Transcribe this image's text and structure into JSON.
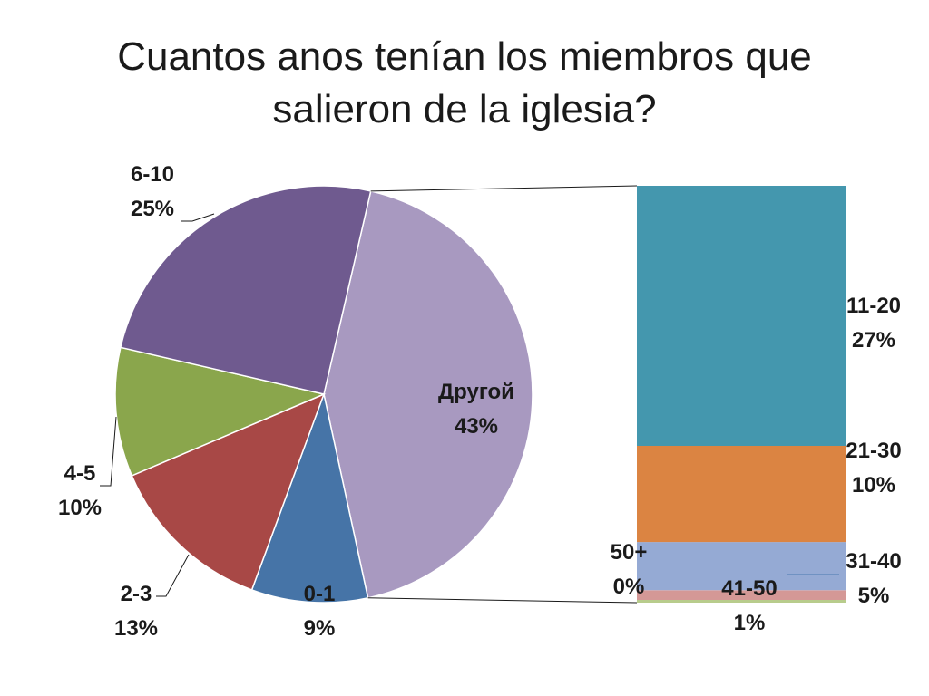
{
  "slide": {
    "title_line1": "Cuantos anos tenían los miembros que",
    "title_line2": "salieron de la iglesia?"
  },
  "chart_data": {
    "type": "bar-of-pie",
    "title": "Cuantos anos tenían los miembros que salieron de la iglesia?",
    "pie": [
      {
        "category": "Другой",
        "percent": 43,
        "color": "#a899c0"
      },
      {
        "category": "0-1",
        "percent": 9,
        "color": "#4674a7"
      },
      {
        "category": "2-3",
        "percent": 13,
        "color": "#a84846"
      },
      {
        "category": "4-5",
        "percent": 10,
        "color": "#8aa64c"
      },
      {
        "category": "6-10",
        "percent": 25,
        "color": "#6f5a8f"
      }
    ],
    "breakdown_of": "Другой",
    "bar": [
      {
        "category": "11-20",
        "percent": 27,
        "color": "#4497ae"
      },
      {
        "category": "21-30",
        "percent": 10,
        "color": "#db8442"
      },
      {
        "category": "31-40",
        "percent": 5,
        "color": "#95aad4"
      },
      {
        "category": "41-50",
        "percent": 1,
        "color": "#d49896"
      },
      {
        "category": "50+",
        "percent": 0,
        "color": "#b8cc8c"
      }
    ]
  }
}
